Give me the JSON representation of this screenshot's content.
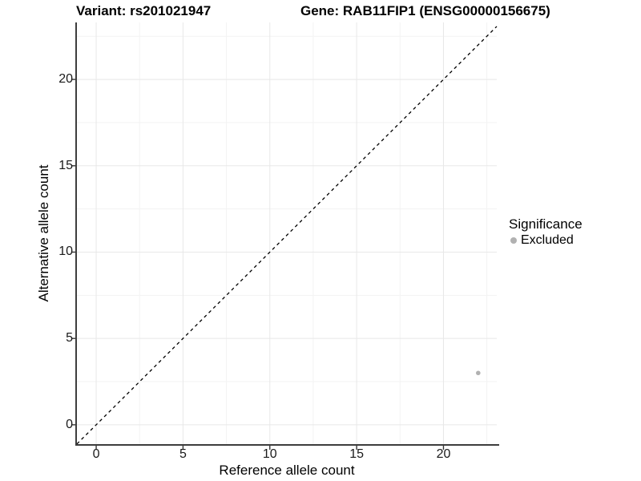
{
  "chart_data": {
    "type": "scatter",
    "title_left": "Variant: rs201021947",
    "title_right": "Gene: RAB11FIP1 (ENSG00000156675)",
    "xlabel": "Reference allele count",
    "ylabel": "Alternative allele count",
    "xlim": [
      -1.11,
      23.07
    ],
    "ylim": [
      -1.12,
      23.3
    ],
    "xticks": [
      0,
      5,
      10,
      15,
      20
    ],
    "yticks": [
      0,
      5,
      10,
      15,
      20
    ],
    "xminor": [
      2.5,
      7.5,
      12.5,
      17.5,
      22.5
    ],
    "yminor": [
      2.5,
      7.5,
      12.5,
      17.5,
      22.5
    ],
    "grid": "major+minor",
    "legend_position": "right",
    "reference_line": {
      "type": "identity y=x",
      "style": "dashed",
      "color": "#000000"
    },
    "series": [
      {
        "name": "Excluded",
        "color": "#b1b1b1",
        "points": [
          {
            "x": 22,
            "y": 3
          }
        ]
      }
    ],
    "legend": {
      "title": "Significance",
      "items": [
        {
          "label": "Excluded",
          "color": "#b1b1b1"
        }
      ]
    },
    "style": {
      "background": "#ffffff",
      "grid_major_color": "#e8e8e8",
      "grid_minor_color": "#f3f3f3",
      "axis_line_color": "#3d3d3d",
      "tick_color": "#333333",
      "point_color": "#b1b1b1"
    }
  }
}
